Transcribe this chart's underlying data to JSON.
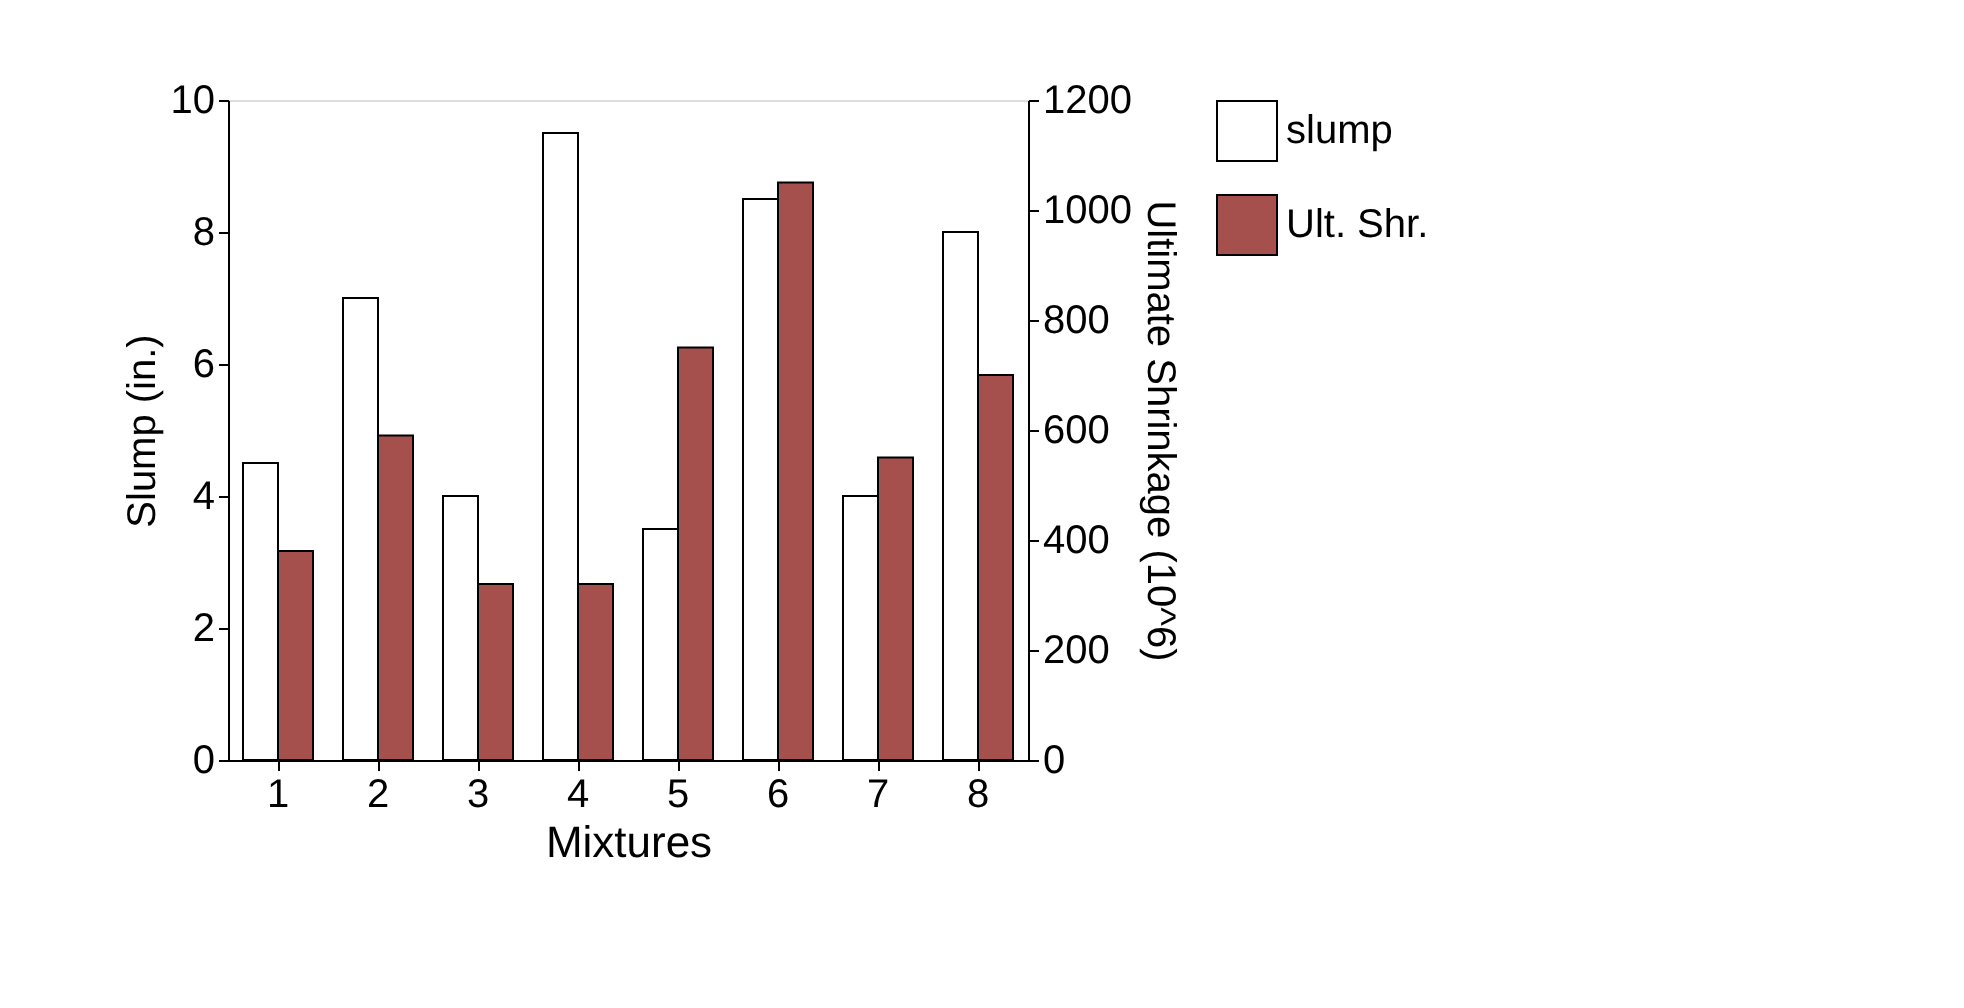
{
  "chart_data": {
    "type": "bar",
    "xlabel": "Mixtures",
    "ylabel": "Slump (in.)",
    "y2label": "Ultimate Shrinkage (10^6)",
    "categories": [
      "1",
      "2",
      "3",
      "4",
      "5",
      "6",
      "7",
      "8"
    ],
    "series": [
      {
        "name": "slump",
        "color": "#ffffff",
        "values": [
          4.5,
          7,
          4,
          9.5,
          3.5,
          8.5,
          4,
          8
        ]
      },
      {
        "name": "Ult. Shr.",
        "color": "#a5504c",
        "axis": "y2",
        "values": [
          380,
          590,
          320,
          320,
          750,
          1050,
          550,
          700
        ]
      }
    ],
    "ylim": [
      0,
      10
    ],
    "yticks": [
      0,
      2,
      4,
      6,
      8,
      10
    ],
    "y2lim": [
      0,
      1200
    ],
    "y2ticks": [
      0,
      200,
      400,
      600,
      800,
      1000,
      1200
    ],
    "grid": false,
    "legend": "right"
  }
}
